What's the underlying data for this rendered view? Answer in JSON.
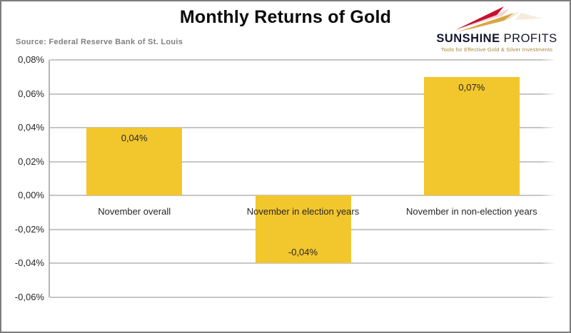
{
  "chart": {
    "title": "Monthly Returns of Gold",
    "source": "Source: Federal Reserve Bank of St. Louis"
  },
  "logo": {
    "brand_bold": "SUNSHINE",
    "brand_light": "PROFITS",
    "tagline": "Tools for Effective Gold & Silver Investments",
    "ray_red": "#c41230",
    "ray_gold": "#d6a645"
  },
  "chart_data": {
    "type": "bar",
    "title": "Monthly Returns of Gold",
    "xlabel": "",
    "ylabel": "",
    "categories": [
      "November overall",
      "November in election years",
      "November in non-election years"
    ],
    "values": [
      0.04,
      -0.04,
      0.07
    ],
    "value_labels": [
      "0,04%",
      "-0,04%",
      "0,07%"
    ],
    "yticks": [
      0.08,
      0.06,
      0.04,
      0.02,
      0.0,
      -0.02,
      -0.04,
      -0.06
    ],
    "ytick_labels": [
      "0,08%",
      "0,06%",
      "0,04%",
      "0,02%",
      "0,00%",
      "-0,02%",
      "-0,04%",
      "-0,06%"
    ],
    "ylim": [
      -0.06,
      0.08
    ],
    "grid": true,
    "legend": false,
    "bar_color": "#F2C62D"
  }
}
